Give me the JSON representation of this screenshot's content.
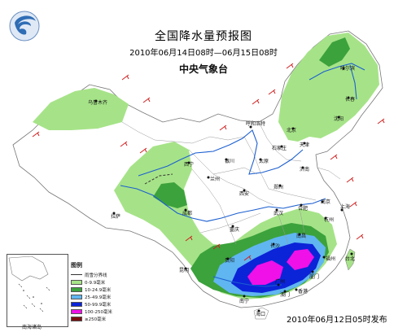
{
  "header": {
    "title": "全国降水量预报图",
    "period": "2010年06月14日08时—06月15日08时",
    "agency": "中央气象台"
  },
  "issued": "2010年06月12日05时发布",
  "legend": {
    "title": "图例",
    "items": [
      {
        "label": "雨雪分界线",
        "kind": "line",
        "color": "#333333"
      },
      {
        "label": "0-9.9毫米",
        "kind": "fill",
        "color": "#a6e388"
      },
      {
        "label": "10-24.9毫米",
        "kind": "fill",
        "color": "#3ca23c"
      },
      {
        "label": "25-49.9毫米",
        "kind": "fill",
        "color": "#60b6f0"
      },
      {
        "label": "50-99.9毫米",
        "kind": "fill",
        "color": "#0b24d8"
      },
      {
        "label": "100-250毫米",
        "kind": "fill",
        "color": "#f010e8"
      },
      {
        "label": "≥250毫米",
        "kind": "fill",
        "color": "#7a0e10"
      }
    ]
  },
  "inset_label": "南海诸岛",
  "cities": {
    "urumqi": "乌鲁木齐",
    "lhasa": "拉萨",
    "xining": "西宁",
    "lanzhou": "兰州",
    "yinchuan": "银川",
    "hohhot": "呼和浩特",
    "beijing": "北京",
    "tianjin": "天津",
    "shijiazhuang": "石家庄",
    "taiyuan": "太原",
    "jinan": "济南",
    "zhengzhou": "郑州",
    "xian": "西安",
    "chengdu": "成都",
    "chongqing": "重庆",
    "wuhan": "武汉",
    "hefei": "合肥",
    "nanjing": "南京",
    "shanghai": "上海",
    "hangzhou": "杭州",
    "nanchang": "南昌",
    "changsha": "长沙",
    "guiyang": "贵阳",
    "kunming": "昆明",
    "nanning": "南宁",
    "guangzhou": "广州",
    "fuzhou": "福州",
    "taibei": "台北",
    "xiamen": "厦门",
    "hongkong": "香港",
    "macau": "澳门",
    "haikou": "海口",
    "shenyang": "沈阳",
    "changchun": "长春",
    "harbin": "哈尔滨"
  },
  "colors": {
    "light_rain": "#a6e388",
    "moderate_rain": "#3ca23c",
    "heavy_rain": "#60b6f0",
    "rainstorm": "#0b24d8",
    "heavy_rainstorm": "#f010e8",
    "river": "#1c5fd0",
    "border": "#777777",
    "wind_barb": "#d02020"
  },
  "logo_icon": "cma-logo-icon"
}
